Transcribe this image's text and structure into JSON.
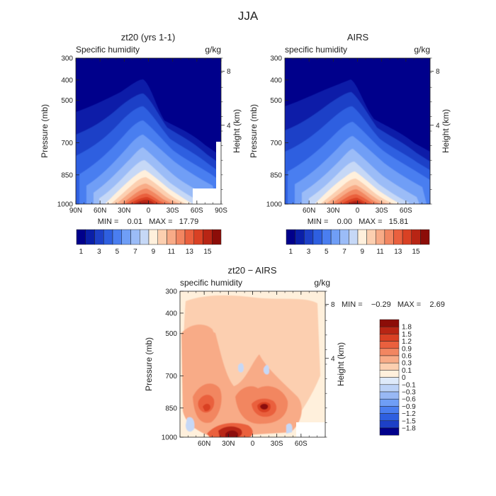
{
  "page": {
    "title": "JJA"
  },
  "chart_data": [
    {
      "type": "heatmap",
      "title": "zt20 (yrs 1-1)",
      "left_string": "Specific humidity",
      "right_string": "g/kg",
      "ylabel": "Pressure (mb)",
      "ylabel_right": "Height (km)",
      "y_ticks": [
        "300",
        "400",
        "500",
        "700",
        "850",
        "1000"
      ],
      "y_right_ticks": [
        "8",
        "4"
      ],
      "x_ticks": [
        "90N",
        "60N",
        "30N",
        "0",
        "30S",
        "60S",
        "90S"
      ],
      "xlim": [
        90,
        -90
      ],
      "ylim": [
        1000,
        300
      ],
      "stats": "MIN =    0.01   MAX =   17.79",
      "colorbar": {
        "labels": [
          "1",
          "3",
          "5",
          "7",
          "9",
          "11",
          "13",
          "15"
        ],
        "colors": [
          "#00008b",
          "#0a1fa8",
          "#1d40c7",
          "#2e5fe0",
          "#4a7ef0",
          "#6f9ef6",
          "#9bbcf7",
          "#c6d8f6",
          "#fff0dc",
          "#fccfb0",
          "#f8ab87",
          "#f28661",
          "#ea603e",
          "#d94124",
          "#b82514",
          "#8c0d08"
        ]
      }
    },
    {
      "type": "heatmap",
      "title": "AIRS",
      "left_string": "specific humidity",
      "right_string": "g/kg",
      "ylabel": "Pressure (mb)",
      "ylabel_right": "Height (km)",
      "y_ticks": [
        "300",
        "400",
        "500",
        "700",
        "850",
        "1000"
      ],
      "y_right_ticks": [
        "8",
        "4"
      ],
      "x_ticks": [
        "60N",
        "30N",
        "0",
        "30S",
        "60S"
      ],
      "xlim": [
        90,
        -90
      ],
      "ylim": [
        1000,
        300
      ],
      "stats": "MIN =    0.00   MAX =   15.81",
      "colorbar": {
        "labels": [
          "1",
          "3",
          "5",
          "7",
          "9",
          "11",
          "13",
          "15"
        ],
        "colors": [
          "#00008b",
          "#0a1fa8",
          "#1d40c7",
          "#2e5fe0",
          "#4a7ef0",
          "#6f9ef6",
          "#9bbcf7",
          "#c6d8f6",
          "#fff0dc",
          "#fccfb0",
          "#f8ab87",
          "#f28661",
          "#ea603e",
          "#d94124",
          "#b82514",
          "#8c0d08"
        ]
      }
    },
    {
      "type": "heatmap",
      "title": "zt20 − AIRS",
      "left_string": "specific humidity",
      "right_string": "g/kg",
      "ylabel": "Pressure (mb)",
      "ylabel_right": "Height (km)",
      "y_ticks": [
        "300",
        "400",
        "500",
        "700",
        "850",
        "1000"
      ],
      "y_right_ticks": [
        "8",
        "4"
      ],
      "x_ticks": [
        "60N",
        "30N",
        "0",
        "30S",
        "60S"
      ],
      "xlim": [
        90,
        -90
      ],
      "ylim": [
        1000,
        300
      ],
      "stats": "MIN =    −0.29   MAX =    2.69",
      "colorbar": {
        "labels": [
          "1.8",
          "1.5",
          "1.2",
          "0.9",
          "0.6",
          "0.3",
          "0.1",
          "0",
          "−0.1",
          "−0.3",
          "−0.6",
          "−0.9",
          "−1.2",
          "−1.5",
          "−1.8"
        ],
        "colors": [
          "#8c0d08",
          "#b82514",
          "#d94124",
          "#ea603e",
          "#f28661",
          "#f8ab87",
          "#fccfb0",
          "#fff0dc",
          "#deeafa",
          "#bcd2f6",
          "#98b8f4",
          "#6f9ef6",
          "#4a7ef0",
          "#2e5fe0",
          "#1d40c7",
          "#00008b"
        ]
      }
    }
  ]
}
